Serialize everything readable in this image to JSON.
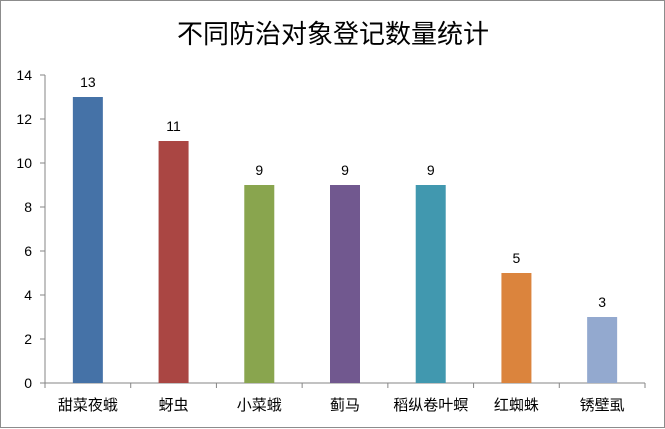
{
  "chart_data": {
    "type": "bar",
    "title": "不同防治对象登记数量统计",
    "categories": [
      "甜菜夜蛾",
      "蚜虫",
      "小菜蛾",
      "蓟马",
      "稻纵卷叶螟",
      "红蜘蛛",
      "锈壁虱"
    ],
    "values": [
      13,
      11,
      9,
      9,
      9,
      5,
      3
    ],
    "colors": [
      "#4572A7",
      "#AA4643",
      "#89A54E",
      "#71588F",
      "#4198AF",
      "#DB843D",
      "#93A9CF"
    ],
    "ylim": [
      0,
      14
    ],
    "yticks": [
      0,
      2,
      4,
      6,
      8,
      10,
      12,
      14
    ],
    "xlabel": "",
    "ylabel": "",
    "grid": false,
    "data_labels": true,
    "legend": "none"
  }
}
